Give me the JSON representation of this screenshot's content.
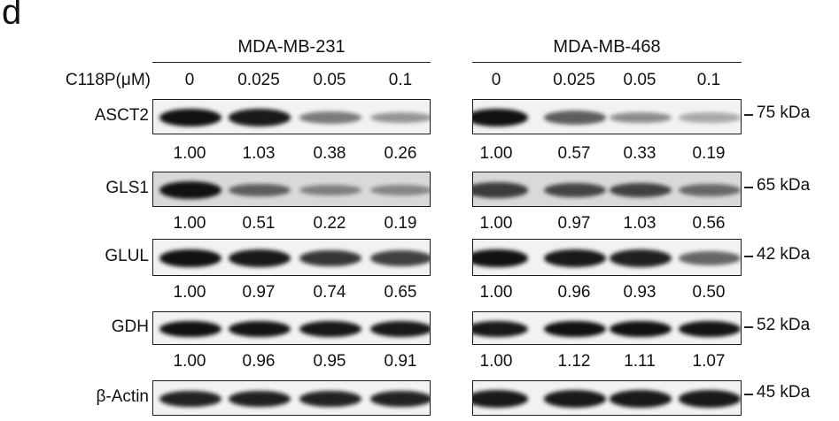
{
  "panel_letter": "d",
  "cell_lines": [
    "MDA-MB-231",
    "MDA-MB-468"
  ],
  "concentration_label": "C118P(μM)",
  "concentrations": [
    "0",
    "0.025",
    "0.05",
    "0.1"
  ],
  "molecular_weights": [
    "75 kDa",
    "65 kDa",
    "42 kDa",
    "52 kDa",
    "45 kDa"
  ],
  "blots": [
    {
      "protein": "ASCT2",
      "band_levels": [
        [
          1.0,
          0.95,
          0.45,
          0.3
        ],
        [
          1.0,
          0.6,
          0.35,
          0.2
        ]
      ],
      "values": [
        [
          "1.00",
          "1.03",
          "0.38",
          "0.26"
        ],
        [
          "1.00",
          "0.57",
          "0.33",
          "0.19"
        ]
      ]
    },
    {
      "protein": "GLS1",
      "band_levels": [
        [
          1.0,
          0.55,
          0.35,
          0.32
        ],
        [
          0.75,
          0.7,
          0.72,
          0.5
        ]
      ],
      "values": [
        [
          "1.00",
          "0.51",
          "0.22",
          "0.19"
        ],
        [
          "1.00",
          "0.97",
          "1.03",
          "0.56"
        ]
      ]
    },
    {
      "protein": "GLUL",
      "band_levels": [
        [
          1.0,
          0.95,
          0.8,
          0.75
        ],
        [
          1.0,
          0.95,
          0.92,
          0.55
        ]
      ],
      "values": [
        [
          "1.00",
          "0.97",
          "0.74",
          "0.65"
        ],
        [
          "1.00",
          "0.96",
          "0.93",
          "0.50"
        ]
      ]
    },
    {
      "protein": "GDH",
      "band_levels": [
        [
          1.0,
          0.98,
          0.97,
          0.95
        ],
        [
          0.95,
          1.0,
          1.0,
          0.98
        ]
      ],
      "values": [
        [
          "1.00",
          "0.96",
          "0.95",
          "0.91"
        ],
        [
          "1.00",
          "1.12",
          "1.11",
          "1.07"
        ]
      ]
    },
    {
      "protein": "β-Actin",
      "band_levels": [
        [
          0.9,
          0.92,
          0.9,
          0.9
        ],
        [
          0.95,
          0.95,
          0.95,
          0.95
        ]
      ],
      "values": []
    }
  ],
  "colors": {
    "membrane_light": "#f2f2f2",
    "membrane_gel": "#d9d9d9",
    "band": "#111111"
  }
}
